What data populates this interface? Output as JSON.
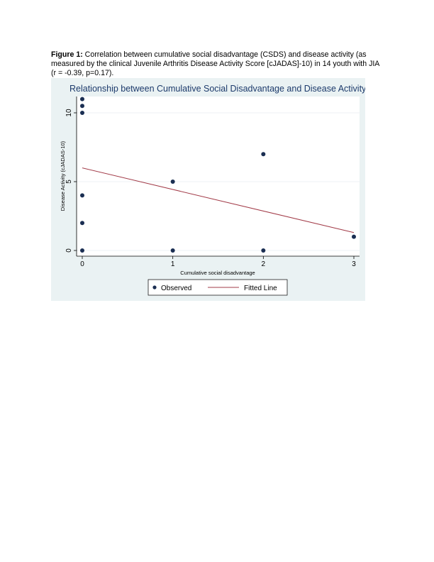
{
  "caption": {
    "label": "Figure 1:",
    "text": " Correlation between cumulative social disadvantage (CSDS) and disease activity (as measured by the clinical Juvenile Arthritis Disease Activity Score [cJADAS]-10) in 14 youth with JIA (r = -0.39, p=0.17)."
  },
  "chart_data": {
    "type": "scatter",
    "title": "Relationship between Cumulative Social Disadvantage and Disease Activity",
    "xlabel": "Cumulative social disadvantage",
    "ylabel": "Disease Activity (cJADAS-10)",
    "xlim": [
      0,
      3
    ],
    "ylim": [
      0,
      10
    ],
    "x_ticks": [
      "0",
      "1",
      "2",
      "3"
    ],
    "y_ticks": [
      "0",
      "5",
      "10"
    ],
    "grid": true,
    "legend_position": "bottom",
    "series": [
      {
        "name": "Observed",
        "color": "#1a2e52",
        "points": [
          {
            "x": 0,
            "y": 11
          },
          {
            "x": 0,
            "y": 10.5
          },
          {
            "x": 0,
            "y": 10
          },
          {
            "x": 0,
            "y": 4
          },
          {
            "x": 0,
            "y": 2
          },
          {
            "x": 0,
            "y": 0
          },
          {
            "x": 1,
            "y": 5
          },
          {
            "x": 1,
            "y": 0
          },
          {
            "x": 2,
            "y": 7
          },
          {
            "x": 2,
            "y": 0
          },
          {
            "x": 3,
            "y": 1
          }
        ]
      },
      {
        "name": "Fitted Line",
        "color": "#a23b48",
        "line": [
          {
            "x": 0,
            "y": 6.0
          },
          {
            "x": 3,
            "y": 1.3
          }
        ]
      }
    ],
    "colors": {
      "background": "#eaf2f3",
      "plot_background": "#ffffff",
      "title": "#1c3a6b"
    }
  }
}
